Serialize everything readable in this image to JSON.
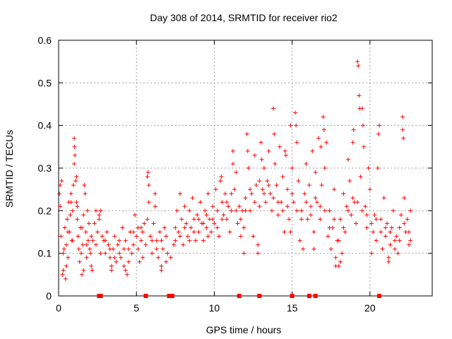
{
  "chart_data": {
    "type": "scatter",
    "title": "Day 308 of 2014, SRMTID for receiver rio2",
    "xlabel": "GPS time / hours",
    "ylabel": "SRMTID / TECUs",
    "xlim": [
      0,
      24
    ],
    "ylim": [
      0,
      0.6
    ],
    "x_ticks": [
      0,
      5,
      10,
      15,
      20
    ],
    "y_ticks": [
      0,
      0.1,
      0.2,
      0.3,
      0.4,
      0.5,
      0.6
    ],
    "x_tick_labels": [
      "0",
      "5",
      "10",
      "15",
      "20"
    ],
    "y_tick_labels": [
      "0",
      "0.1",
      "0.2",
      "0.3",
      "0.4",
      "0.5",
      "0.6"
    ],
    "grid": true,
    "marker": "plus",
    "color": "#ff0000",
    "zero_markers_x": [
      2.6,
      2.7,
      5.6,
      7.1,
      7.2,
      7.3,
      11.6,
      12.9,
      15.0,
      16.1,
      16.5,
      20.6
    ],
    "points": [
      [
        0.05,
        0.24
      ],
      [
        0.1,
        0.21
      ],
      [
        0.15,
        0.14
      ],
      [
        0.2,
        0.27
      ],
      [
        0.25,
        0.05
      ],
      [
        0.3,
        0.06
      ],
      [
        0.35,
        0.11
      ],
      [
        0.4,
        0.16
      ],
      [
        0.45,
        0.04
      ],
      [
        0.5,
        0.12
      ],
      [
        0.55,
        0.18
      ],
      [
        0.6,
        0.09
      ],
      [
        0.65,
        0.22
      ],
      [
        0.7,
        0.15
      ],
      [
        0.75,
        0.19
      ],
      [
        0.8,
        0.24
      ],
      [
        0.85,
        0.13
      ],
      [
        0.9,
        0.2
      ],
      [
        0.95,
        0.26
      ],
      [
        1.0,
        0.37
      ],
      [
        1.02,
        0.35
      ],
      [
        1.05,
        0.33
      ],
      [
        1.1,
        0.27
      ],
      [
        1.15,
        0.22
      ],
      [
        1.2,
        0.18
      ],
      [
        1.25,
        0.14
      ],
      [
        1.3,
        0.11
      ],
      [
        1.35,
        0.08
      ],
      [
        1.4,
        0.16
      ],
      [
        1.45,
        0.1
      ],
      [
        1.5,
        0.05
      ],
      [
        1.55,
        0.12
      ],
      [
        1.6,
        0.19
      ],
      [
        1.65,
        0.26
      ],
      [
        1.7,
        0.24
      ],
      [
        1.75,
        0.15
      ],
      [
        1.8,
        0.09
      ],
      [
        1.85,
        0.2
      ],
      [
        1.9,
        0.13
      ],
      [
        1.95,
        0.17
      ],
      [
        2.0,
        0.11
      ],
      [
        2.05,
        0.1
      ],
      [
        2.1,
        0.07
      ],
      [
        2.15,
        0.06
      ],
      [
        2.2,
        0.13
      ],
      [
        2.3,
        0.17
      ],
      [
        2.4,
        0.2
      ],
      [
        2.5,
        0.15
      ],
      [
        2.6,
        0.18
      ],
      [
        2.7,
        0.2
      ],
      [
        2.8,
        0.14
      ],
      [
        2.9,
        0.13
      ],
      [
        3.0,
        0.1
      ],
      [
        3.1,
        0.15
      ],
      [
        3.2,
        0.12
      ],
      [
        3.3,
        0.09
      ],
      [
        3.4,
        0.07
      ],
      [
        3.5,
        0.11
      ],
      [
        3.6,
        0.14
      ],
      [
        3.7,
        0.08
      ],
      [
        3.8,
        0.12
      ],
      [
        3.9,
        0.1
      ],
      [
        4.0,
        0.09
      ],
      [
        4.1,
        0.16
      ],
      [
        4.2,
        0.07
      ],
      [
        4.3,
        0.13
      ],
      [
        4.4,
        0.05
      ],
      [
        4.5,
        0.11
      ],
      [
        4.6,
        0.15
      ],
      [
        4.7,
        0.1
      ],
      [
        4.8,
        0.12
      ],
      [
        4.9,
        0.19
      ],
      [
        5.0,
        0.14
      ],
      [
        5.1,
        0.16
      ],
      [
        5.2,
        0.08
      ],
      [
        5.3,
        0.13
      ],
      [
        5.4,
        0.15
      ],
      [
        5.5,
        0.17
      ],
      [
        5.6,
        0.12
      ],
      [
        5.7,
        0.28
      ],
      [
        5.75,
        0.29
      ],
      [
        5.8,
        0.22
      ],
      [
        5.9,
        0.14
      ],
      [
        6.0,
        0.1
      ],
      [
        6.1,
        0.17
      ],
      [
        6.2,
        0.24
      ],
      [
        6.3,
        0.13
      ],
      [
        6.4,
        0.09
      ],
      [
        6.5,
        0.15
      ],
      [
        6.6,
        0.07
      ],
      [
        6.7,
        0.11
      ],
      [
        6.8,
        0.16
      ],
      [
        6.9,
        0.14
      ],
      [
        7.0,
        0.1
      ],
      [
        7.2,
        0.09
      ],
      [
        7.4,
        0.12
      ],
      [
        7.5,
        0.16
      ],
      [
        7.6,
        0.2
      ],
      [
        7.7,
        0.15
      ],
      [
        7.8,
        0.24
      ],
      [
        7.9,
        0.18
      ],
      [
        8.0,
        0.12
      ],
      [
        8.1,
        0.21
      ],
      [
        8.2,
        0.17
      ],
      [
        8.3,
        0.14
      ],
      [
        8.4,
        0.2
      ],
      [
        8.5,
        0.16
      ],
      [
        8.6,
        0.23
      ],
      [
        8.7,
        0.18
      ],
      [
        8.8,
        0.13
      ],
      [
        8.9,
        0.19
      ],
      [
        9.0,
        0.15
      ],
      [
        9.1,
        0.22
      ],
      [
        9.2,
        0.17
      ],
      [
        9.3,
        0.13
      ],
      [
        9.4,
        0.2
      ],
      [
        9.5,
        0.16
      ],
      [
        9.6,
        0.24
      ],
      [
        9.7,
        0.18
      ],
      [
        9.8,
        0.15
      ],
      [
        9.9,
        0.21
      ],
      [
        10.0,
        0.17
      ],
      [
        10.1,
        0.25
      ],
      [
        10.2,
        0.2
      ],
      [
        10.3,
        0.14
      ],
      [
        10.4,
        0.27
      ],
      [
        10.5,
        0.22
      ],
      [
        10.6,
        0.19
      ],
      [
        10.7,
        0.24
      ],
      [
        10.8,
        0.18
      ],
      [
        10.9,
        0.21
      ],
      [
        11.0,
        0.15
      ],
      [
        11.1,
        0.2
      ],
      [
        11.2,
        0.34
      ],
      [
        11.3,
        0.25
      ],
      [
        11.4,
        0.29
      ],
      [
        11.5,
        0.17
      ],
      [
        11.6,
        0.21
      ],
      [
        11.7,
        0.14
      ],
      [
        11.8,
        0.2
      ],
      [
        11.9,
        0.16
      ],
      [
        12.0,
        0.23
      ],
      [
        12.1,
        0.38
      ],
      [
        12.2,
        0.3
      ],
      [
        12.3,
        0.2
      ],
      [
        12.4,
        0.24
      ],
      [
        12.5,
        0.14
      ],
      [
        12.6,
        0.33
      ],
      [
        12.7,
        0.26
      ],
      [
        12.8,
        0.1
      ],
      [
        12.9,
        0.21
      ],
      [
        13.0,
        0.36
      ],
      [
        13.1,
        0.25
      ],
      [
        13.2,
        0.3
      ],
      [
        13.3,
        0.22
      ],
      [
        13.4,
        0.27
      ],
      [
        13.5,
        0.34
      ],
      [
        13.6,
        0.24
      ],
      [
        13.7,
        0.2
      ],
      [
        13.8,
        0.44
      ],
      [
        13.9,
        0.31
      ],
      [
        14.0,
        0.26
      ],
      [
        14.1,
        0.19
      ],
      [
        14.2,
        0.35
      ],
      [
        14.3,
        0.22
      ],
      [
        14.4,
        0.28
      ],
      [
        14.5,
        0.15
      ],
      [
        14.6,
        0.33
      ],
      [
        14.7,
        0.25
      ],
      [
        14.8,
        0.18
      ],
      [
        14.9,
        0.4
      ],
      [
        15.0,
        0.3
      ],
      [
        15.1,
        0.22
      ],
      [
        15.2,
        0.43
      ],
      [
        15.3,
        0.36
      ],
      [
        15.4,
        0.27
      ],
      [
        15.5,
        0.13
      ],
      [
        15.6,
        0.2
      ],
      [
        15.7,
        0.11
      ],
      [
        15.8,
        0.24
      ],
      [
        15.9,
        0.31
      ],
      [
        16.0,
        0.18
      ],
      [
        16.1,
        0.26
      ],
      [
        16.2,
        0.21
      ],
      [
        16.3,
        0.34
      ],
      [
        16.4,
        0.15
      ],
      [
        16.5,
        0.29
      ],
      [
        16.6,
        0.22
      ],
      [
        16.7,
        0.37
      ],
      [
        16.8,
        0.18
      ],
      [
        16.9,
        0.26
      ],
      [
        17.0,
        0.42
      ],
      [
        17.1,
        0.3
      ],
      [
        17.2,
        0.36
      ],
      [
        17.3,
        0.14
      ],
      [
        17.4,
        0.2
      ],
      [
        17.5,
        0.11
      ],
      [
        17.6,
        0.16
      ],
      [
        17.7,
        0.25
      ],
      [
        17.8,
        0.09
      ],
      [
        17.9,
        0.13
      ],
      [
        18.0,
        0.07
      ],
      [
        18.1,
        0.18
      ],
      [
        18.2,
        0.1
      ],
      [
        18.3,
        0.24
      ],
      [
        18.4,
        0.15
      ],
      [
        18.5,
        0.21
      ],
      [
        18.6,
        0.32
      ],
      [
        18.7,
        0.27
      ],
      [
        18.8,
        0.19
      ],
      [
        18.9,
        0.36
      ],
      [
        19.0,
        0.22
      ],
      [
        19.1,
        0.17
      ],
      [
        19.2,
        0.55
      ],
      [
        19.25,
        0.54
      ],
      [
        19.3,
        0.47
      ],
      [
        19.4,
        0.28
      ],
      [
        19.5,
        0.44
      ],
      [
        19.6,
        0.35
      ],
      [
        19.7,
        0.21
      ],
      [
        19.8,
        0.16
      ],
      [
        19.9,
        0.3
      ],
      [
        20.0,
        0.25
      ],
      [
        20.1,
        0.1
      ],
      [
        20.2,
        0.15
      ],
      [
        20.3,
        0.19
      ],
      [
        20.4,
        0.13
      ],
      [
        20.5,
        0.3
      ],
      [
        20.6,
        0.4
      ],
      [
        20.7,
        0.18
      ],
      [
        20.8,
        0.11
      ],
      [
        20.9,
        0.23
      ],
      [
        21.0,
        0.14
      ],
      [
        21.1,
        0.17
      ],
      [
        21.2,
        0.09
      ],
      [
        21.3,
        0.12
      ],
      [
        21.4,
        0.16
      ],
      [
        21.5,
        0.2
      ],
      [
        21.6,
        0.11
      ],
      [
        21.7,
        0.14
      ],
      [
        21.8,
        0.1
      ],
      [
        21.9,
        0.13
      ],
      [
        22.0,
        0.19
      ],
      [
        22.1,
        0.42
      ],
      [
        22.15,
        0.37
      ],
      [
        22.2,
        0.23
      ],
      [
        22.3,
        0.15
      ],
      [
        22.4,
        0.18
      ],
      [
        22.5,
        0.12
      ],
      [
        22.6,
        0.2
      ],
      [
        0.3,
        0.1
      ],
      [
        0.6,
        0.15
      ],
      [
        0.9,
        0.13
      ],
      [
        1.2,
        0.21
      ],
      [
        1.5,
        0.16
      ],
      [
        1.8,
        0.12
      ],
      [
        2.1,
        0.14
      ],
      [
        2.4,
        0.12
      ],
      [
        2.7,
        0.1
      ],
      [
        3.0,
        0.13
      ],
      [
        3.3,
        0.11
      ],
      [
        3.6,
        0.09
      ],
      [
        3.9,
        0.13
      ],
      [
        4.2,
        0.11
      ],
      [
        4.5,
        0.08
      ],
      [
        4.8,
        0.15
      ],
      [
        5.1,
        0.11
      ],
      [
        5.4,
        0.09
      ],
      [
        5.7,
        0.18
      ],
      [
        6.0,
        0.13
      ],
      [
        6.3,
        0.11
      ],
      [
        6.6,
        0.13
      ],
      [
        6.9,
        0.08
      ],
      [
        7.5,
        0.13
      ],
      [
        7.8,
        0.14
      ],
      [
        8.1,
        0.16
      ],
      [
        8.4,
        0.13
      ],
      [
        8.7,
        0.15
      ],
      [
        9.0,
        0.18
      ],
      [
        9.3,
        0.17
      ],
      [
        9.6,
        0.14
      ],
      [
        9.9,
        0.18
      ],
      [
        10.2,
        0.16
      ],
      [
        10.5,
        0.18
      ],
      [
        10.8,
        0.22
      ],
      [
        11.1,
        0.24
      ],
      [
        11.4,
        0.2
      ],
      [
        11.7,
        0.18
      ],
      [
        12.0,
        0.2
      ],
      [
        12.3,
        0.25
      ],
      [
        12.6,
        0.22
      ],
      [
        12.9,
        0.27
      ],
      [
        13.2,
        0.24
      ],
      [
        13.5,
        0.26
      ],
      [
        13.8,
        0.23
      ],
      [
        14.1,
        0.22
      ],
      [
        14.4,
        0.2
      ],
      [
        14.7,
        0.21
      ],
      [
        15.0,
        0.24
      ],
      [
        15.3,
        0.2
      ],
      [
        15.6,
        0.18
      ],
      [
        15.9,
        0.22
      ],
      [
        16.2,
        0.19
      ],
      [
        16.5,
        0.23
      ],
      [
        16.8,
        0.21
      ],
      [
        17.1,
        0.2
      ],
      [
        17.4,
        0.16
      ],
      [
        17.7,
        0.18
      ],
      [
        18.0,
        0.13
      ],
      [
        18.3,
        0.16
      ],
      [
        18.6,
        0.2
      ],
      [
        18.9,
        0.23
      ],
      [
        19.2,
        0.22
      ],
      [
        19.5,
        0.2
      ],
      [
        19.8,
        0.19
      ],
      [
        20.1,
        0.17
      ],
      [
        20.4,
        0.18
      ],
      [
        20.7,
        0.15
      ],
      [
        21.0,
        0.16
      ],
      [
        21.3,
        0.15
      ],
      [
        21.6,
        0.13
      ],
      [
        21.9,
        0.16
      ],
      [
        22.2,
        0.17
      ],
      [
        22.5,
        0.15
      ],
      [
        22.6,
        0.13
      ],
      [
        1.0,
        0.31
      ],
      [
        1.15,
        0.28
      ],
      [
        5.8,
        0.26
      ],
      [
        9.5,
        0.19
      ],
      [
        10.45,
        0.28
      ],
      [
        11.2,
        0.31
      ],
      [
        12.15,
        0.34
      ],
      [
        13.05,
        0.32
      ],
      [
        13.85,
        0.38
      ],
      [
        14.55,
        0.34
      ],
      [
        15.25,
        0.4
      ],
      [
        16.85,
        0.35
      ],
      [
        17.05,
        0.39
      ],
      [
        18.95,
        0.39
      ],
      [
        19.55,
        0.4
      ],
      [
        19.35,
        0.44
      ],
      [
        20.55,
        0.38
      ],
      [
        22.1,
        0.39
      ],
      [
        0.5,
        0.07
      ],
      [
        1.6,
        0.06
      ],
      [
        3.4,
        0.06
      ],
      [
        4.3,
        0.06
      ],
      [
        6.6,
        0.06
      ],
      [
        11.9,
        0.1
      ],
      [
        12.8,
        0.12
      ],
      [
        14.9,
        0.15
      ],
      [
        16.4,
        0.11
      ],
      [
        17.8,
        0.07
      ],
      [
        18.1,
        0.08
      ],
      [
        21.2,
        0.08
      ],
      [
        0.1,
        0.26
      ],
      [
        0.8,
        0.22
      ],
      [
        2.6,
        0.19
      ],
      [
        5.3,
        0.16
      ],
      [
        6.2,
        0.21
      ]
    ]
  }
}
